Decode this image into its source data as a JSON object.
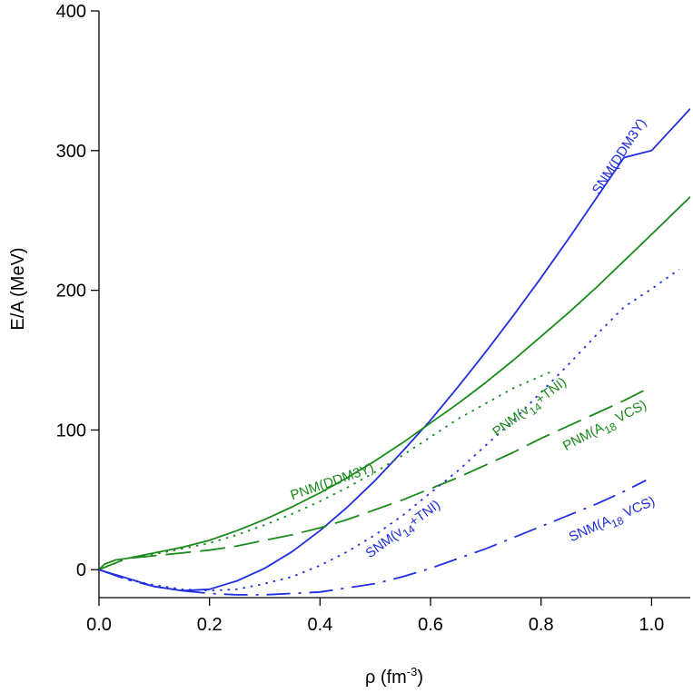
{
  "chart_data": {
    "type": "line",
    "title": "",
    "xlabel": "ρ (fm",
    "xlabel_sup": "-3",
    "xlabel_end": ")",
    "ylabel": "E/A (MeV)",
    "xlim": [
      0.0,
      1.07
    ],
    "ylim": [
      -20,
      400
    ],
    "x_ticks": [
      0.0,
      0.2,
      0.4,
      0.6,
      0.8,
      1.0
    ],
    "x_tick_labels": [
      "0.0",
      "0.2",
      "0.4",
      "0.6",
      "0.8",
      "1.0"
    ],
    "y_ticks": [
      0,
      100,
      200,
      300,
      400
    ],
    "y_tick_labels": [
      "0",
      "100",
      "200",
      "300",
      "400"
    ],
    "colors": {
      "pnm": "#1a8a1a",
      "snm": "#1f2ee0"
    },
    "series": [
      {
        "name": "SNM(DDM3Y)",
        "family": "snm",
        "dash": "solid",
        "x": [
          0.0,
          0.05,
          0.1,
          0.15,
          0.2,
          0.25,
          0.3,
          0.35,
          0.4,
          0.45,
          0.5,
          0.55,
          0.6,
          0.65,
          0.7,
          0.75,
          0.8,
          0.85,
          0.9,
          0.95,
          1.0,
          1.07
        ],
        "values": [
          0,
          -6,
          -12,
          -15,
          -14,
          -8,
          1,
          13,
          28,
          45,
          64,
          85,
          107,
          131,
          156,
          182,
          209,
          237,
          266,
          295,
          300,
          330
        ]
      },
      {
        "name": "PNM(DDM3Y)",
        "family": "pnm",
        "dash": "solid",
        "x": [
          0.0,
          0.01,
          0.03,
          0.05,
          0.1,
          0.15,
          0.2,
          0.25,
          0.3,
          0.35,
          0.4,
          0.45,
          0.5,
          0.55,
          0.6,
          0.65,
          0.7,
          0.75,
          0.8,
          0.85,
          0.9,
          0.95,
          1.0,
          1.07
        ],
        "values": [
          0,
          4,
          7,
          8,
          12,
          16,
          21,
          28,
          36,
          45,
          55,
          66,
          78,
          91,
          105,
          119,
          134,
          150,
          167,
          184,
          202,
          221,
          240,
          267
        ]
      },
      {
        "name": "PNM(v14+TNI)",
        "family": "pnm",
        "dash": "dotted",
        "x": [
          0.0,
          0.05,
          0.1,
          0.15,
          0.2,
          0.25,
          0.3,
          0.35,
          0.4,
          0.45,
          0.5,
          0.55,
          0.6,
          0.65,
          0.7,
          0.75,
          0.82
        ],
        "values": [
          0,
          8,
          11,
          15,
          19,
          25,
          32,
          40,
          49,
          59,
          70,
          82,
          95,
          108,
          119,
          130,
          142
        ]
      },
      {
        "name": "PNM(A18 VCS)",
        "family": "pnm",
        "dash": "longdash",
        "x": [
          0.0,
          0.05,
          0.1,
          0.15,
          0.2,
          0.25,
          0.3,
          0.35,
          0.4,
          0.45,
          0.5,
          0.55,
          0.6,
          0.65,
          0.7,
          0.75,
          0.8,
          0.85,
          0.9,
          0.95,
          0.99
        ],
        "values": [
          0,
          8,
          10,
          12,
          14,
          17,
          21,
          25,
          30,
          36,
          43,
          50,
          58,
          66,
          75,
          84,
          94,
          103,
          112,
          121,
          129
        ]
      },
      {
        "name": "SNM(v14+TNI)",
        "family": "snm",
        "dash": "dotted",
        "x": [
          0.0,
          0.05,
          0.1,
          0.15,
          0.2,
          0.25,
          0.3,
          0.35,
          0.4,
          0.45,
          0.5,
          0.55,
          0.6,
          0.65,
          0.7,
          0.75,
          0.8,
          0.85,
          0.9,
          0.95,
          1.0,
          1.05
        ],
        "values": [
          0,
          -7,
          -11,
          -14,
          -15,
          -14,
          -10,
          -5,
          3,
          13,
          25,
          39,
          55,
          71,
          89,
          107,
          127,
          147,
          168,
          188,
          201,
          215
        ]
      },
      {
        "name": "SNM(A18 VCS)",
        "family": "snm",
        "dash": "dashdot",
        "x": [
          0.0,
          0.05,
          0.1,
          0.15,
          0.2,
          0.25,
          0.3,
          0.35,
          0.4,
          0.45,
          0.5,
          0.55,
          0.6,
          0.65,
          0.7,
          0.75,
          0.8,
          0.85,
          0.9,
          0.95,
          0.99
        ],
        "values": [
          0,
          -7,
          -12,
          -15,
          -17,
          -18,
          -18,
          -17,
          -16,
          -13,
          -10,
          -5,
          1,
          8,
          15,
          23,
          31,
          39,
          47,
          56,
          64
        ]
      }
    ],
    "curve_labels": [
      {
        "family": "snm",
        "parts": [
          [
            "SNM(DDM3Y)",
            ""
          ]
        ],
        "x": 0.905,
        "y": 268,
        "angle": -57
      },
      {
        "family": "pnm",
        "parts": [
          [
            "PNM(DDM3Y)",
            ""
          ]
        ],
        "x": 0.35,
        "y": 50,
        "angle": -19
      },
      {
        "family": "pnm",
        "parts": [
          [
            "PNM(v",
            ""
          ],
          [
            "14",
            "sub"
          ],
          [
            "+TNI)",
            ""
          ]
        ],
        "x": 0.72,
        "y": 95,
        "angle": -37
      },
      {
        "family": "pnm",
        "parts": [
          [
            "PNM(A",
            ""
          ],
          [
            "18",
            "sub"
          ],
          [
            " VCS)",
            ""
          ]
        ],
        "x": 0.845,
        "y": 85,
        "angle": -28
      },
      {
        "family": "snm",
        "parts": [
          [
            "SNM(v",
            ""
          ],
          [
            "14",
            "sub"
          ],
          [
            "+TNI)",
            ""
          ]
        ],
        "x": 0.49,
        "y": 8,
        "angle": -36
      },
      {
        "family": "snm",
        "parts": [
          [
            "SNM(A",
            ""
          ],
          [
            "18",
            "sub"
          ],
          [
            " VCS)",
            ""
          ]
        ],
        "x": 0.855,
        "y": 20,
        "angle": -24
      }
    ]
  }
}
